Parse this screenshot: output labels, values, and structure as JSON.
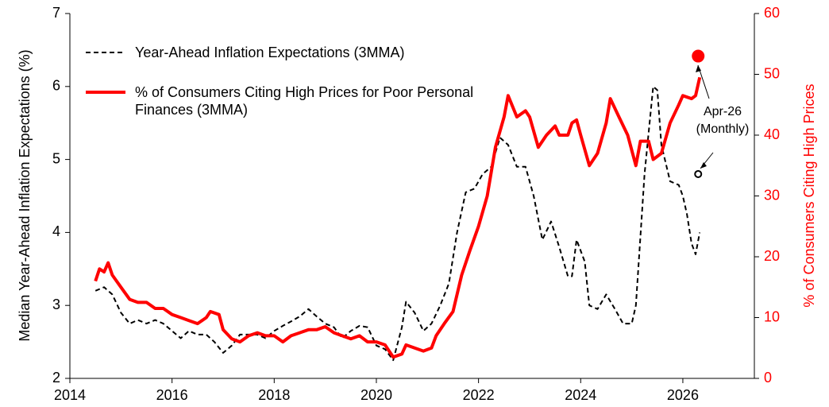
{
  "chart_data": {
    "type": "line",
    "y_label": "Median Year-Ahead Inflation Expectations (%)",
    "y2_label": "% of Consumers Citing High Prices",
    "xlim": [
      2014,
      2027.4
    ],
    "xticks": [
      2014,
      2016,
      2018,
      2020,
      2022,
      2024,
      2026
    ],
    "ylim": [
      2,
      7
    ],
    "yticks": [
      2,
      3,
      4,
      5,
      6,
      7
    ],
    "y2lim": [
      0,
      60
    ],
    "y2ticks": [
      0,
      10,
      20,
      30,
      40,
      50,
      60
    ],
    "series": [
      {
        "name": "Year-Ahead Inflation Expectations (3MMA)",
        "color": "#000000",
        "dashed": true,
        "axis": "y",
        "x": [
          2014.5,
          2014.67,
          2014.83,
          2015.0,
          2015.17,
          2015.33,
          2015.5,
          2015.67,
          2015.83,
          2016.0,
          2016.17,
          2016.33,
          2016.5,
          2016.67,
          2016.83,
          2017.0,
          2017.17,
          2017.33,
          2017.5,
          2017.67,
          2017.83,
          2018.0,
          2018.17,
          2018.33,
          2018.5,
          2018.67,
          2018.83,
          2019.0,
          2019.17,
          2019.33,
          2019.5,
          2019.67,
          2019.83,
          2020.0,
          2020.17,
          2020.33,
          2020.5,
          2020.58,
          2020.75,
          2020.92,
          2021.08,
          2021.25,
          2021.42,
          2021.58,
          2021.75,
          2021.92,
          2022.08,
          2022.25,
          2022.42,
          2022.58,
          2022.75,
          2022.92,
          2023.08,
          2023.25,
          2023.42,
          2023.58,
          2023.75,
          2023.83,
          2023.92,
          2024.08,
          2024.17,
          2024.33,
          2024.5,
          2024.67,
          2024.83,
          2025.0,
          2025.08,
          2025.25,
          2025.42,
          2025.5,
          2025.58,
          2025.75,
          2025.92,
          2026.0,
          2026.08,
          2026.17,
          2026.25,
          2026.33
        ],
        "values": [
          3.2,
          3.25,
          3.15,
          2.9,
          2.75,
          2.8,
          2.75,
          2.8,
          2.75,
          2.65,
          2.55,
          2.65,
          2.6,
          2.6,
          2.5,
          2.35,
          2.45,
          2.6,
          2.6,
          2.6,
          2.55,
          2.65,
          2.72,
          2.78,
          2.85,
          2.95,
          2.85,
          2.75,
          2.7,
          2.55,
          2.65,
          2.72,
          2.7,
          2.45,
          2.4,
          2.25,
          2.7,
          3.05,
          2.9,
          2.65,
          2.75,
          3.0,
          3.3,
          4.0,
          4.55,
          4.6,
          4.8,
          4.9,
          5.3,
          5.2,
          4.9,
          4.9,
          4.5,
          3.9,
          4.15,
          3.8,
          3.4,
          3.4,
          3.9,
          3.6,
          3.0,
          2.95,
          3.15,
          2.95,
          2.75,
          2.75,
          3.0,
          4.8,
          6.0,
          5.95,
          5.2,
          4.7,
          4.65,
          4.5,
          4.25,
          3.85,
          3.7,
          4.0
        ]
      },
      {
        "name": "% of Consumers Citing High Prices for Poor Personal Finances (3MMA)",
        "color": "#ff0000",
        "dashed": false,
        "axis": "y2",
        "x": [
          2014.5,
          2014.58,
          2014.67,
          2014.75,
          2014.83,
          2015.0,
          2015.17,
          2015.33,
          2015.5,
          2015.67,
          2015.83,
          2016.0,
          2016.17,
          2016.33,
          2016.5,
          2016.67,
          2016.75,
          2016.92,
          2017.0,
          2017.17,
          2017.33,
          2017.5,
          2017.67,
          2017.83,
          2018.0,
          2018.17,
          2018.33,
          2018.5,
          2018.67,
          2018.83,
          2019.0,
          2019.17,
          2019.33,
          2019.5,
          2019.67,
          2019.83,
          2020.0,
          2020.17,
          2020.33,
          2020.5,
          2020.58,
          2020.75,
          2020.92,
          2021.08,
          2021.17,
          2021.33,
          2021.5,
          2021.67,
          2021.83,
          2022.0,
          2022.17,
          2022.33,
          2022.5,
          2022.58,
          2022.75,
          2022.92,
          2023.0,
          2023.17,
          2023.33,
          2023.5,
          2023.58,
          2023.75,
          2023.83,
          2023.92,
          2024.0,
          2024.17,
          2024.33,
          2024.5,
          2024.58,
          2024.75,
          2024.92,
          2025.08,
          2025.17,
          2025.33,
          2025.42,
          2025.58,
          2025.75,
          2025.92,
          2026.0,
          2026.17,
          2026.25,
          2026.33
        ],
        "values": [
          16,
          18,
          17.5,
          19,
          17,
          15,
          13,
          12.5,
          12.5,
          11.5,
          11.5,
          10.5,
          10,
          9.5,
          9,
          10,
          11,
          10.5,
          8,
          6.5,
          6,
          7,
          7.5,
          7,
          7,
          6,
          7,
          7.5,
          8,
          8,
          8.5,
          7.5,
          7,
          6.5,
          7,
          6,
          6,
          5.5,
          3.5,
          4,
          5.5,
          5,
          4.5,
          5,
          7,
          9,
          11,
          17,
          21,
          25,
          30,
          38,
          43,
          46.5,
          43,
          44,
          43,
          38,
          40,
          41.5,
          40,
          40,
          42,
          42.5,
          40,
          35,
          37,
          42,
          46,
          43,
          40,
          35,
          39,
          39,
          36,
          37,
          42,
          45,
          46.5,
          46,
          46.5,
          49.5
        ]
      }
    ],
    "annotation": {
      "text": [
        "Apr-26",
        "(Monthly)"
      ],
      "points": [
        {
          "x": 2026.3,
          "value": 4.8,
          "axis": "y",
          "color": "#000000",
          "filled": false
        },
        {
          "x": 2026.3,
          "value": 53,
          "axis": "y2",
          "color": "#ff0000",
          "filled": true
        }
      ]
    }
  }
}
